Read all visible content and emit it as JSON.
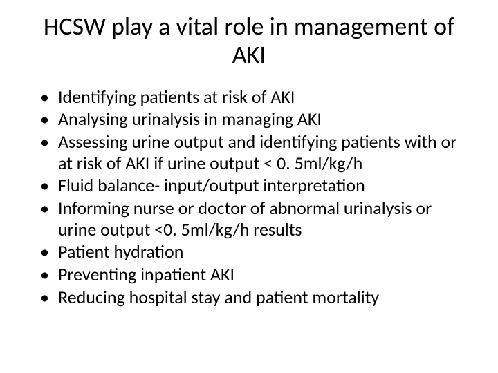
{
  "slide": {
    "title": "HCSW play a vital role in management of AKI",
    "title_fontsize": 36,
    "title_color": "#000000",
    "bullet_fontsize": 26,
    "bullet_color": "#000000",
    "background_color": "#ffffff",
    "bullets": [
      " Identifying patients at risk of AKI",
      "Analysing urinalysis in managing AKI",
      "Assessing urine output and identifying patients with or at risk of AKI if urine output < 0. 5ml/kg/h",
      "Fluid balance- input/output interpretation",
      "Informing nurse or doctor of abnormal urinalysis or urine output <0. 5ml/kg/h results",
      "Patient hydration",
      "Preventing inpatient AKI",
      "Reducing hospital stay and patient mortality"
    ]
  }
}
